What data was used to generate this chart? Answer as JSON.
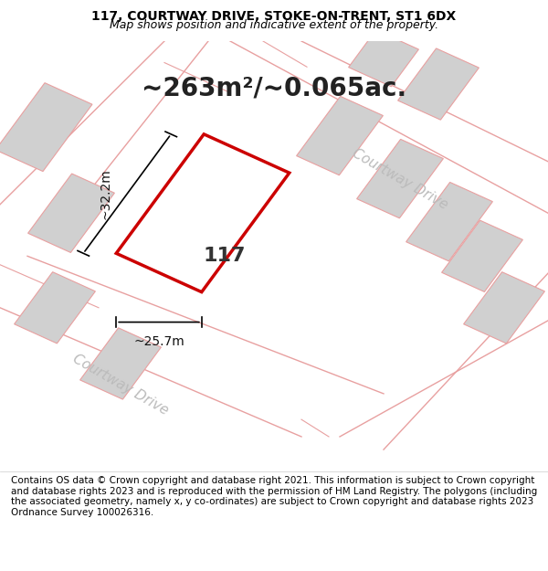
{
  "title_line1": "117, COURTWAY DRIVE, STOKE-ON-TRENT, ST1 6DX",
  "title_line2": "Map shows position and indicative extent of the property.",
  "area_text": "~263m²/~0.065ac.",
  "label_117": "117",
  "dim_width": "~25.7m",
  "dim_height": "~32.2m",
  "road_label_bottom": "Courtway Drive",
  "road_label_right": "Courtway Drive",
  "footer_text": "Contains OS data © Crown copyright and database right 2021. This information is subject to Crown copyright and database rights 2023 and is reproduced with the permission of HM Land Registry. The polygons (including the associated geometry, namely x, y co-ordinates) are subject to Crown copyright and database rights 2023 Ordnance Survey 100026316.",
  "bg_color": "#f0eeee",
  "map_bg": "#f0eeee",
  "plot_outline_color": "#cc0000",
  "neighbor_fill": "#d0d0d0",
  "neighbor_stroke": "#e8a0a0",
  "road_line_color": "#e8a0a0",
  "dim_line_color": "#000000",
  "footer_bg": "#ffffff",
  "title_fontsize": 10,
  "area_fontsize": 20,
  "label_fontsize": 16,
  "dim_fontsize": 10,
  "road_fontsize": 11,
  "footer_fontsize": 7.5
}
